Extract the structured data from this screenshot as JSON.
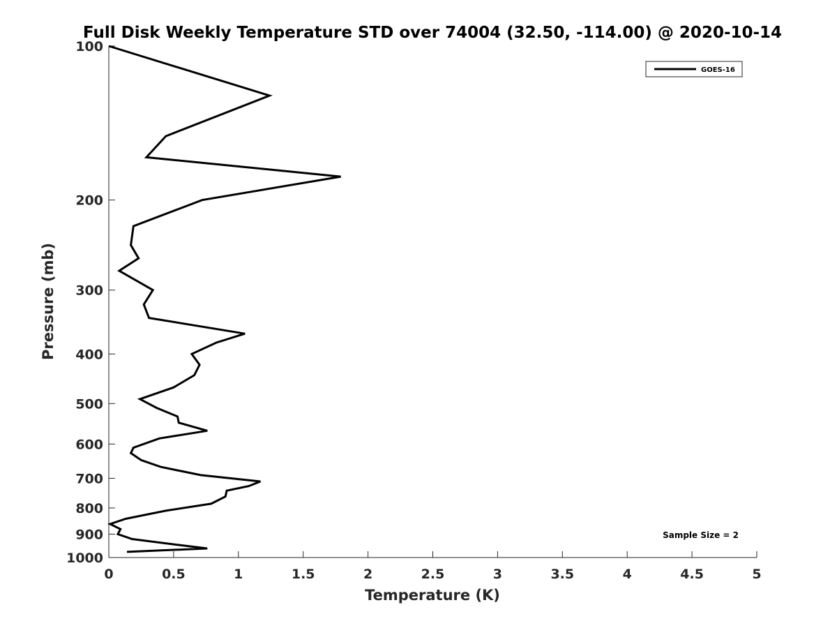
{
  "chart_data": {
    "type": "line",
    "title": "Full Disk Weekly Temperature STD over 74004 (32.50, -114.00) @ 2020-10-14",
    "xlabel": "Temperature (K)",
    "ylabel": "Pressure (mb)",
    "xlim": [
      0,
      5
    ],
    "ylim": [
      100,
      1000
    ],
    "y_scale": "log",
    "y_reversed": true,
    "x_ticks": [
      "0",
      "0.5",
      "1",
      "1.5",
      "2",
      "2.5",
      "3",
      "3.5",
      "4",
      "4.5",
      "5"
    ],
    "y_ticks": [
      "100",
      "200",
      "300",
      "400",
      "500",
      "600",
      "700",
      "800",
      "900",
      "1000"
    ],
    "grid": false,
    "legend_position": "top-right",
    "annotation": "Sample Size = 2",
    "series": [
      {
        "name": "GOES-16",
        "color": "#000000",
        "points": [
          [
            0.0,
            100
          ],
          [
            1.24,
            125
          ],
          [
            0.44,
            150
          ],
          [
            0.29,
            165
          ],
          [
            1.79,
            180
          ],
          [
            0.72,
            200
          ],
          [
            0.19,
            225
          ],
          [
            0.17,
            245
          ],
          [
            0.23,
            260
          ],
          [
            0.08,
            275
          ],
          [
            0.34,
            300
          ],
          [
            0.27,
            320
          ],
          [
            0.31,
            340
          ],
          [
            1.05,
            365
          ],
          [
            0.83,
            380
          ],
          [
            0.64,
            400
          ],
          [
            0.7,
            420
          ],
          [
            0.66,
            440
          ],
          [
            0.5,
            465
          ],
          [
            0.24,
            490
          ],
          [
            0.37,
            510
          ],
          [
            0.53,
            530
          ],
          [
            0.54,
            545
          ],
          [
            0.76,
            565
          ],
          [
            0.39,
            585
          ],
          [
            0.19,
            610
          ],
          [
            0.17,
            625
          ],
          [
            0.25,
            645
          ],
          [
            0.4,
            665
          ],
          [
            0.71,
            690
          ],
          [
            1.17,
            710
          ],
          [
            1.08,
            725
          ],
          [
            0.91,
            740
          ],
          [
            0.9,
            760
          ],
          [
            0.79,
            785
          ],
          [
            0.44,
            810
          ],
          [
            0.13,
            840
          ],
          [
            0.01,
            860
          ],
          [
            0.09,
            880
          ],
          [
            0.07,
            900
          ],
          [
            0.18,
            920
          ],
          [
            0.54,
            945
          ],
          [
            0.76,
            960
          ],
          [
            0.14,
            975
          ]
        ]
      }
    ]
  }
}
